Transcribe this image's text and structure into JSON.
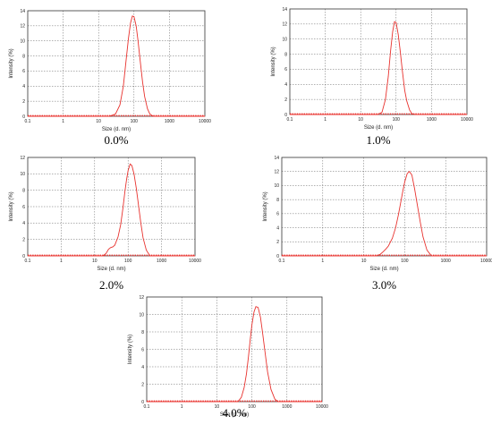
{
  "chart_data": [
    {
      "type": "line",
      "caption": "0.0%",
      "xlabel": "Size (d. nm)",
      "ylabel": "Intensity (%)",
      "xscale": "log",
      "xlim": [
        0.1,
        10000
      ],
      "ylim": [
        0,
        14
      ],
      "xticks": [
        "0.1",
        "1",
        "10",
        "100",
        "1000",
        "10000"
      ],
      "yticks": [
        "0",
        "2",
        "4",
        "6",
        "8",
        "10",
        "12",
        "14"
      ],
      "grid": true,
      "series": [
        {
          "color": "#e8322e",
          "x": [
            0.1,
            20,
            30,
            40,
            50,
            60,
            70,
            80,
            90,
            100,
            115,
            130,
            150,
            175,
            200,
            240,
            280,
            350,
            10000
          ],
          "y": [
            0,
            0,
            0.3,
            1.5,
            4.0,
            7.5,
            10.4,
            12.4,
            13.3,
            13.2,
            12.0,
            10.0,
            7.3,
            4.5,
            2.6,
            1.0,
            0.3,
            0,
            0
          ]
        }
      ]
    },
    {
      "type": "line",
      "caption": "1.0%",
      "xlabel": "Size (d. nm)",
      "ylabel": "Intensity (%)",
      "xscale": "log",
      "xlim": [
        0.1,
        10000
      ],
      "ylim": [
        0,
        14
      ],
      "xticks": [
        "0.1",
        "1",
        "10",
        "100",
        "1000",
        "10000"
      ],
      "yticks": [
        "0",
        "2",
        "4",
        "6",
        "8",
        "10",
        "12",
        "14"
      ],
      "grid": true,
      "series": [
        {
          "color": "#e8322e",
          "x": [
            0.1,
            30,
            40,
            50,
            60,
            70,
            80,
            90,
            100,
            115,
            130,
            150,
            175,
            200,
            240,
            280,
            350,
            10000
          ],
          "y": [
            0,
            0,
            0.3,
            2.0,
            5.0,
            8.5,
            11.0,
            12.3,
            12.2,
            10.6,
            8.5,
            5.8,
            3.2,
            1.8,
            0.6,
            0.1,
            0,
            0
          ]
        }
      ]
    },
    {
      "type": "line",
      "caption": "2.0%",
      "xlabel": "Size (d. nm)",
      "ylabel": "Intensity (%)",
      "xscale": "log",
      "xlim": [
        0.1,
        10000
      ],
      "ylim": [
        0,
        12
      ],
      "xticks": [
        "0.1",
        "1",
        "10",
        "100",
        "1000",
        "10000"
      ],
      "yticks": [
        "0",
        "2",
        "4",
        "6",
        "8",
        "10",
        "12"
      ],
      "grid": true,
      "series": [
        {
          "color": "#e8322e",
          "x": [
            0.1,
            18,
            22,
            26,
            30,
            35,
            40,
            50,
            60,
            70,
            80,
            90,
            100,
            115,
            130,
            150,
            175,
            200,
            240,
            280,
            350,
            450,
            10000
          ],
          "y": [
            0,
            0,
            0.3,
            0.8,
            1.0,
            1.1,
            1.3,
            2.3,
            3.8,
            5.8,
            7.8,
            9.3,
            10.4,
            11.2,
            11.0,
            10.0,
            8.3,
            6.5,
            4.0,
            2.2,
            0.7,
            0,
            0
          ]
        }
      ]
    },
    {
      "type": "line",
      "caption": "3.0%",
      "xlabel": "Size (d. nm)",
      "ylabel": "Intensity (%)",
      "xscale": "log",
      "xlim": [
        0.1,
        10000
      ],
      "ylim": [
        0,
        14
      ],
      "xticks": [
        "0.1",
        "1",
        "10",
        "100",
        "1000",
        "10000"
      ],
      "yticks": [
        "0",
        "2",
        "4",
        "6",
        "8",
        "10",
        "12",
        "14"
      ],
      "grid": true,
      "series": [
        {
          "color": "#e8322e",
          "x": [
            0.1,
            20,
            25,
            30,
            35,
            40,
            50,
            60,
            70,
            80,
            90,
            100,
            115,
            130,
            150,
            175,
            200,
            240,
            280,
            350,
            450,
            10000
          ],
          "y": [
            0,
            0,
            0.2,
            0.6,
            1.0,
            1.4,
            2.5,
            4.0,
            5.8,
            7.6,
            9.2,
            10.5,
            11.7,
            12.0,
            11.5,
            9.5,
            7.5,
            4.8,
            2.7,
            0.8,
            0,
            0
          ]
        }
      ]
    },
    {
      "type": "line",
      "caption": "4.0%",
      "xlabel": "Size (d. nm)",
      "ylabel": "Intensity (%)",
      "xscale": "log",
      "xlim": [
        0.1,
        10000
      ],
      "ylim": [
        0,
        12
      ],
      "xticks": [
        "0.1",
        "1",
        "10",
        "100",
        "1000",
        "10000"
      ],
      "yticks": [
        "0",
        "2",
        "4",
        "6",
        "8",
        "10",
        "12"
      ],
      "grid": true,
      "series": [
        {
          "color": "#e8322e",
          "x": [
            0.1,
            40,
            50,
            60,
            70,
            80,
            90,
            100,
            115,
            130,
            150,
            175,
            200,
            240,
            280,
            350,
            450,
            550,
            10000
          ],
          "y": [
            0,
            0,
            0.5,
            1.6,
            3.2,
            5.2,
            7.2,
            8.8,
            10.3,
            10.9,
            10.8,
            9.7,
            8.0,
            5.5,
            3.4,
            1.4,
            0.3,
            0,
            0
          ]
        }
      ]
    }
  ]
}
